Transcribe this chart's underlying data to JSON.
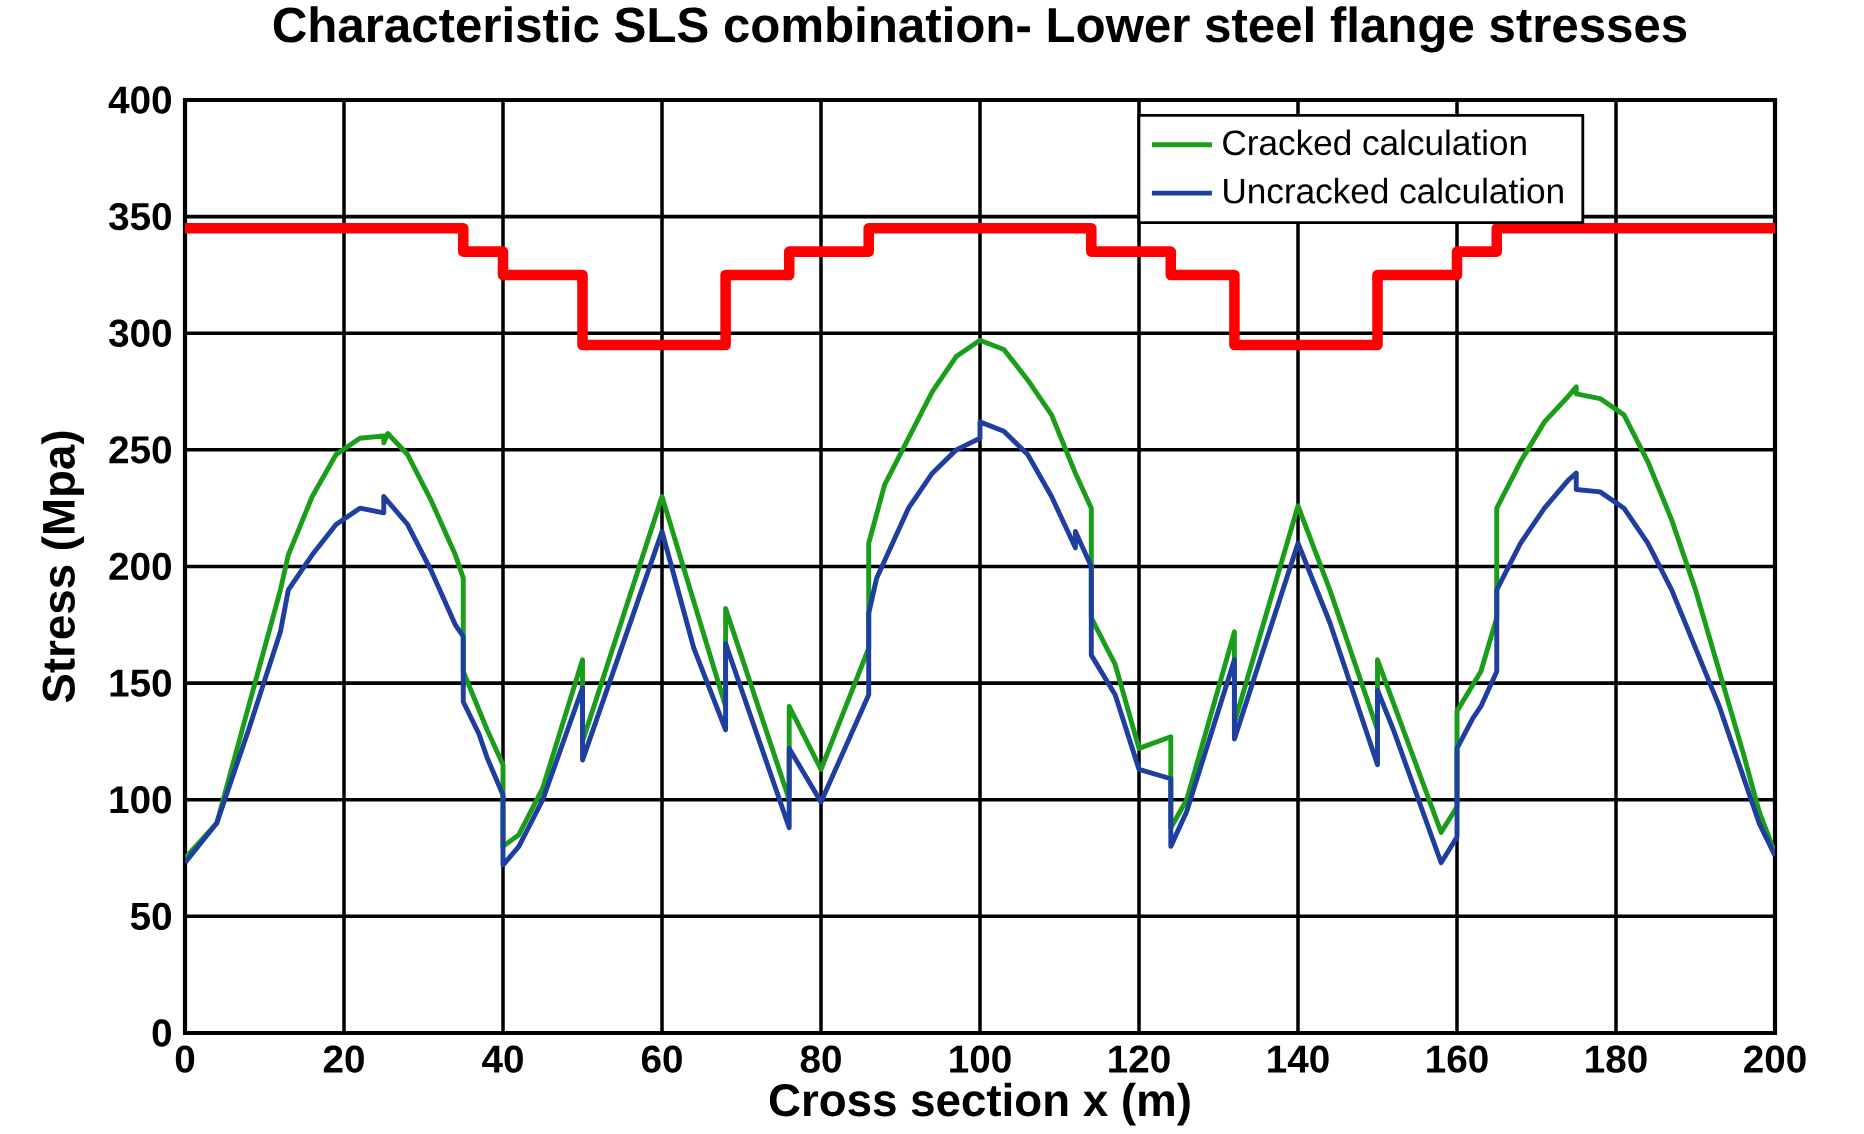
{
  "chart_data": {
    "type": "line",
    "title": "Characteristic SLS  combination- Lower steel flange stresses",
    "xlabel": "Cross section x (m)",
    "ylabel": "Stress (Mpa)",
    "xlim": [
      0,
      200
    ],
    "ylim": [
      0,
      400
    ],
    "xticks": [
      0,
      20,
      40,
      60,
      80,
      100,
      120,
      140,
      160,
      180,
      200
    ],
    "yticks": [
      0,
      50,
      100,
      150,
      200,
      250,
      300,
      350,
      400
    ],
    "grid": true,
    "legend": "top right",
    "marker": "none",
    "line_style": "solid",
    "series": [
      {
        "color": "#ff0000",
        "x": [
          0,
          35,
          35,
          40,
          40,
          50,
          50,
          68,
          68,
          76,
          76,
          86,
          86,
          114,
          114,
          124,
          124,
          132,
          132,
          150,
          150,
          160,
          160,
          165,
          165,
          200
        ],
        "values": [
          345,
          345,
          335,
          335,
          325,
          325,
          295,
          295,
          325,
          325,
          335,
          335,
          345,
          345,
          335,
          335,
          325,
          325,
          295,
          295,
          325,
          325,
          335,
          335,
          345,
          345
        ]
      },
      {
        "name": "Cracked calculation",
        "color": "#1a9e1a",
        "x": [
          0,
          4,
          8,
          12,
          13,
          16,
          19,
          22,
          25,
          25,
          25.5,
          28,
          31,
          34,
          35,
          35,
          38,
          40,
          40,
          42,
          45,
          50,
          50,
          60,
          68,
          68,
          76,
          76,
          80,
          86,
          86,
          88,
          91,
          94,
          97,
          100,
          103,
          106,
          109,
          112,
          114,
          114,
          117,
          120,
          124,
          124,
          126,
          132,
          132,
          140,
          144,
          150,
          150,
          158,
          160,
          160,
          163,
          165,
          165,
          168,
          171,
          174,
          175,
          175,
          178,
          181,
          184,
          187,
          190,
          193,
          196,
          198,
          200
        ],
        "values": [
          75,
          90,
          140,
          190,
          205,
          230,
          248,
          255,
          256,
          253,
          257,
          248,
          228,
          205,
          195,
          155,
          130,
          115,
          80,
          85,
          105,
          160,
          125,
          230,
          140,
          182,
          100,
          140,
          113,
          165,
          210,
          235,
          255,
          275,
          290,
          297,
          293,
          280,
          265,
          240,
          225,
          178,
          158,
          122,
          127,
          88,
          100,
          172,
          133,
          226,
          190,
          130,
          160,
          86,
          97,
          138,
          155,
          178,
          225,
          245,
          262,
          273,
          277,
          274,
          272,
          265,
          245,
          220,
          190,
          155,
          120,
          95,
          77
        ]
      },
      {
        "name": "Uncracked calculation",
        "color": "#1f3fa0",
        "x": [
          0,
          4,
          8,
          12,
          13,
          16,
          19,
          22,
          25,
          25,
          28,
          31,
          34,
          35,
          35,
          37,
          38,
          40,
          40,
          42,
          45,
          50,
          50,
          60,
          64,
          68,
          68,
          76,
          76,
          80,
          86,
          86,
          87,
          91,
          94,
          97,
          100,
          100,
          103,
          106,
          109,
          112,
          112,
          114,
          114,
          117,
          120,
          124,
          124,
          126,
          132,
          132,
          140,
          144,
          150,
          150,
          152,
          158,
          160,
          160,
          162,
          163,
          165,
          165,
          168,
          171,
          174,
          175,
          175,
          178,
          181,
          184,
          187,
          190,
          193,
          196,
          198,
          200
        ],
        "values": [
          73,
          90,
          130,
          172,
          190,
          205,
          218,
          225,
          223,
          230,
          218,
          198,
          175,
          170,
          142,
          128,
          118,
          102,
          72,
          80,
          100,
          148,
          117,
          215,
          165,
          130,
          167,
          88,
          122,
          99,
          145,
          180,
          195,
          225,
          240,
          250,
          255,
          262,
          258,
          248,
          230,
          208,
          215,
          200,
          162,
          145,
          113,
          109,
          80,
          95,
          160,
          126,
          210,
          176,
          115,
          147,
          130,
          73,
          84,
          122,
          135,
          140,
          155,
          190,
          210,
          225,
          237,
          240,
          233,
          232,
          225,
          210,
          190,
          165,
          140,
          110,
          90,
          76
        ]
      }
    ]
  }
}
